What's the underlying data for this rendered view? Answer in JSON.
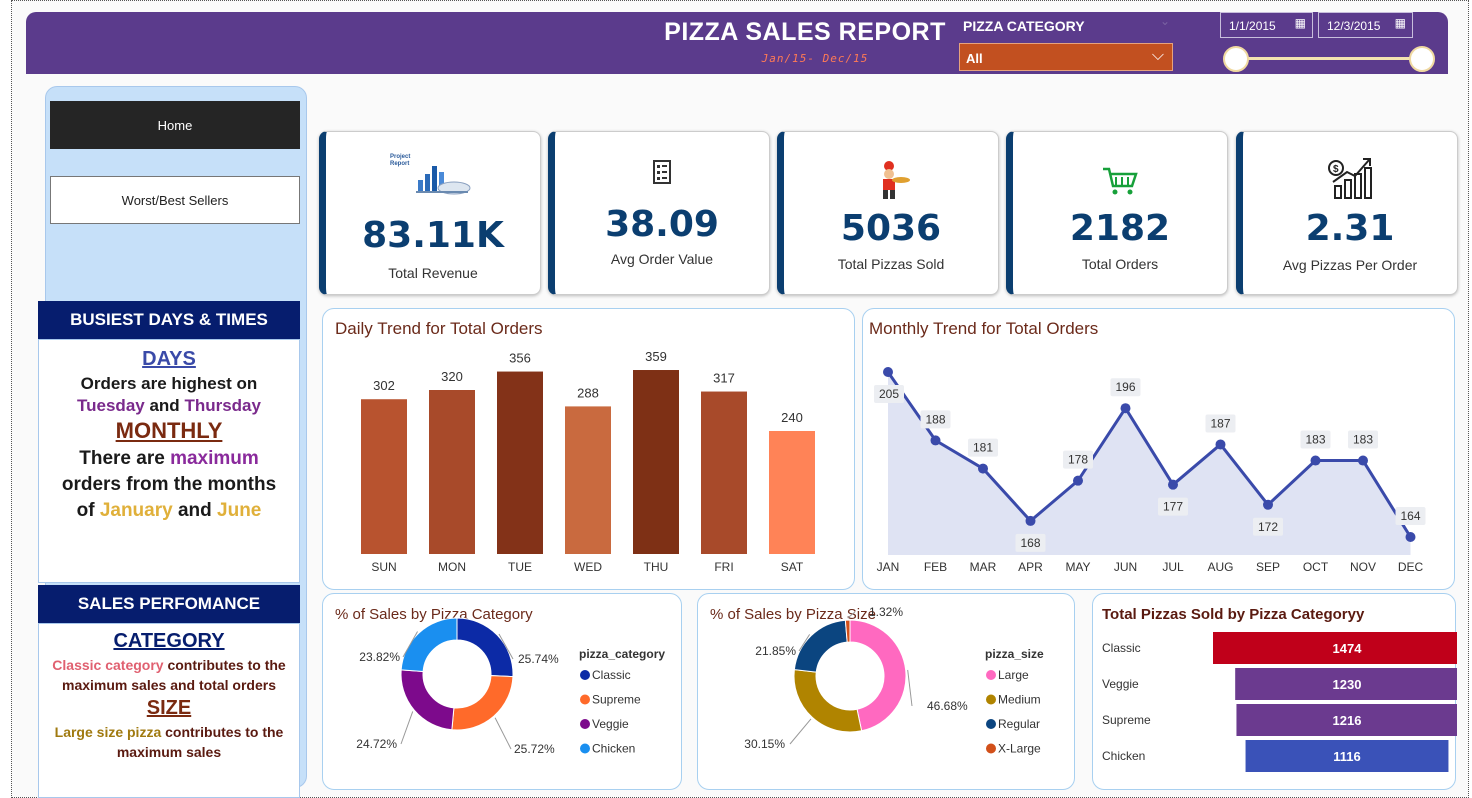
{
  "header": {
    "title": "PIZZA SALES REPORT",
    "subtitle": "Jan/15- Dec/15",
    "category_label": "PIZZA CATEGORY",
    "category_value": "All",
    "date_start": "1/1/2015",
    "date_end": "12/3/2015",
    "header_color": "#5b3b8c"
  },
  "nav": {
    "home": "Home",
    "worst_best": "Worst/Best Sellers"
  },
  "busiest": {
    "heading": "BUSIEST DAYS & TIMES",
    "days_title": "DAYS",
    "days_line1": "Orders are highest on",
    "days_tue": "Tuesday",
    "days_and": "and",
    "days_thu": "Thursday",
    "monthly_title": "MONTHLY",
    "monthly_line1a": "There are",
    "monthly_max": "maximum",
    "monthly_line2": "orders from the months",
    "monthly_of": "of",
    "monthly_jan": "January",
    "monthly_and": "and",
    "monthly_jun": "June"
  },
  "sales_perf": {
    "heading": "SALES PERFOMANCE",
    "category_title": "CATEGORY",
    "cat_highlight": "Classic category",
    "cat_rest1": "contributes to the",
    "cat_rest2": "maximum sales and total orders",
    "size_title": "SIZE",
    "size_highlight": "Large size pizza",
    "size_rest1": "contributes to the",
    "size_rest2": "maximum sales"
  },
  "kpis": [
    {
      "value": "83.11K",
      "label": "Total Revenue",
      "icon": "report-chart-icon"
    },
    {
      "value": "38.09",
      "label": "Avg Order Value",
      "icon": "receipt-icon"
    },
    {
      "value": "5036",
      "label": "Total Pizzas Sold",
      "icon": "pizza-chef-icon"
    },
    {
      "value": "2182",
      "label": "Total Orders",
      "icon": "cart-icon"
    },
    {
      "value": "2.31",
      "label": "Avg Pizzas Per Order",
      "icon": "growth-chart-icon"
    }
  ],
  "chart_data": [
    {
      "type": "bar",
      "title": "Daily Trend for Total Orders",
      "categories": [
        "SUN",
        "MON",
        "TUE",
        "WED",
        "THU",
        "FRI",
        "SAT"
      ],
      "values": [
        302,
        320,
        356,
        288,
        359,
        317,
        240
      ],
      "colors": [
        "#b8532f",
        "#a84a2a",
        "#833218",
        "#c96a3f",
        "#7e3015",
        "#a84a2a",
        "#ff8357"
      ],
      "ylim": [
        0,
        400
      ]
    },
    {
      "type": "area",
      "title": "Monthly Trend for Total Orders",
      "categories": [
        "JAN",
        "FEB",
        "MAR",
        "APR",
        "MAY",
        "JUN",
        "JUL",
        "AUG",
        "SEP",
        "OCT",
        "NOV",
        "DEC"
      ],
      "values": [
        205,
        188,
        181,
        168,
        178,
        196,
        177,
        187,
        172,
        183,
        183,
        164
      ],
      "line_color": "#3a4aaa",
      "fill_color": "#dfe3f3"
    },
    {
      "type": "pie",
      "title": "% of Sales by Pizza Category",
      "legend_title": "pizza_category",
      "labels": [
        "Classic",
        "Supreme",
        "Veggie",
        "Chicken"
      ],
      "values": [
        25.74,
        25.72,
        24.72,
        23.82
      ],
      "display": [
        "25.74%",
        "25.72%",
        "24.72%",
        "23.82%"
      ],
      "colors": [
        "#0c2aa6",
        "#ff6a2a",
        "#7d0a8c",
        "#1a8ff0"
      ]
    },
    {
      "type": "pie",
      "title": "% of Sales by Pizza Size",
      "legend_title": "pizza_size",
      "labels": [
        "Large",
        "Medium",
        "Regular",
        "X-Large"
      ],
      "values": [
        46.68,
        30.15,
        21.85,
        1.32
      ],
      "display": [
        "46.68%",
        "30.15%",
        "21.85%",
        "1.32%"
      ],
      "colors": [
        "#ff69c0",
        "#b08400",
        "#0b4580",
        "#d2501a"
      ]
    },
    {
      "type": "bar",
      "orientation": "horizontal",
      "title": "Total Pizzas Sold by Pizza Categoryy",
      "categories": [
        "Classic",
        "Veggie",
        "Supreme",
        "Chicken"
      ],
      "values": [
        1474,
        1230,
        1216,
        1116
      ],
      "colors": [
        "#c0001a",
        "#6b3a8f",
        "#6b3a8f",
        "#3a52b8"
      ]
    }
  ]
}
